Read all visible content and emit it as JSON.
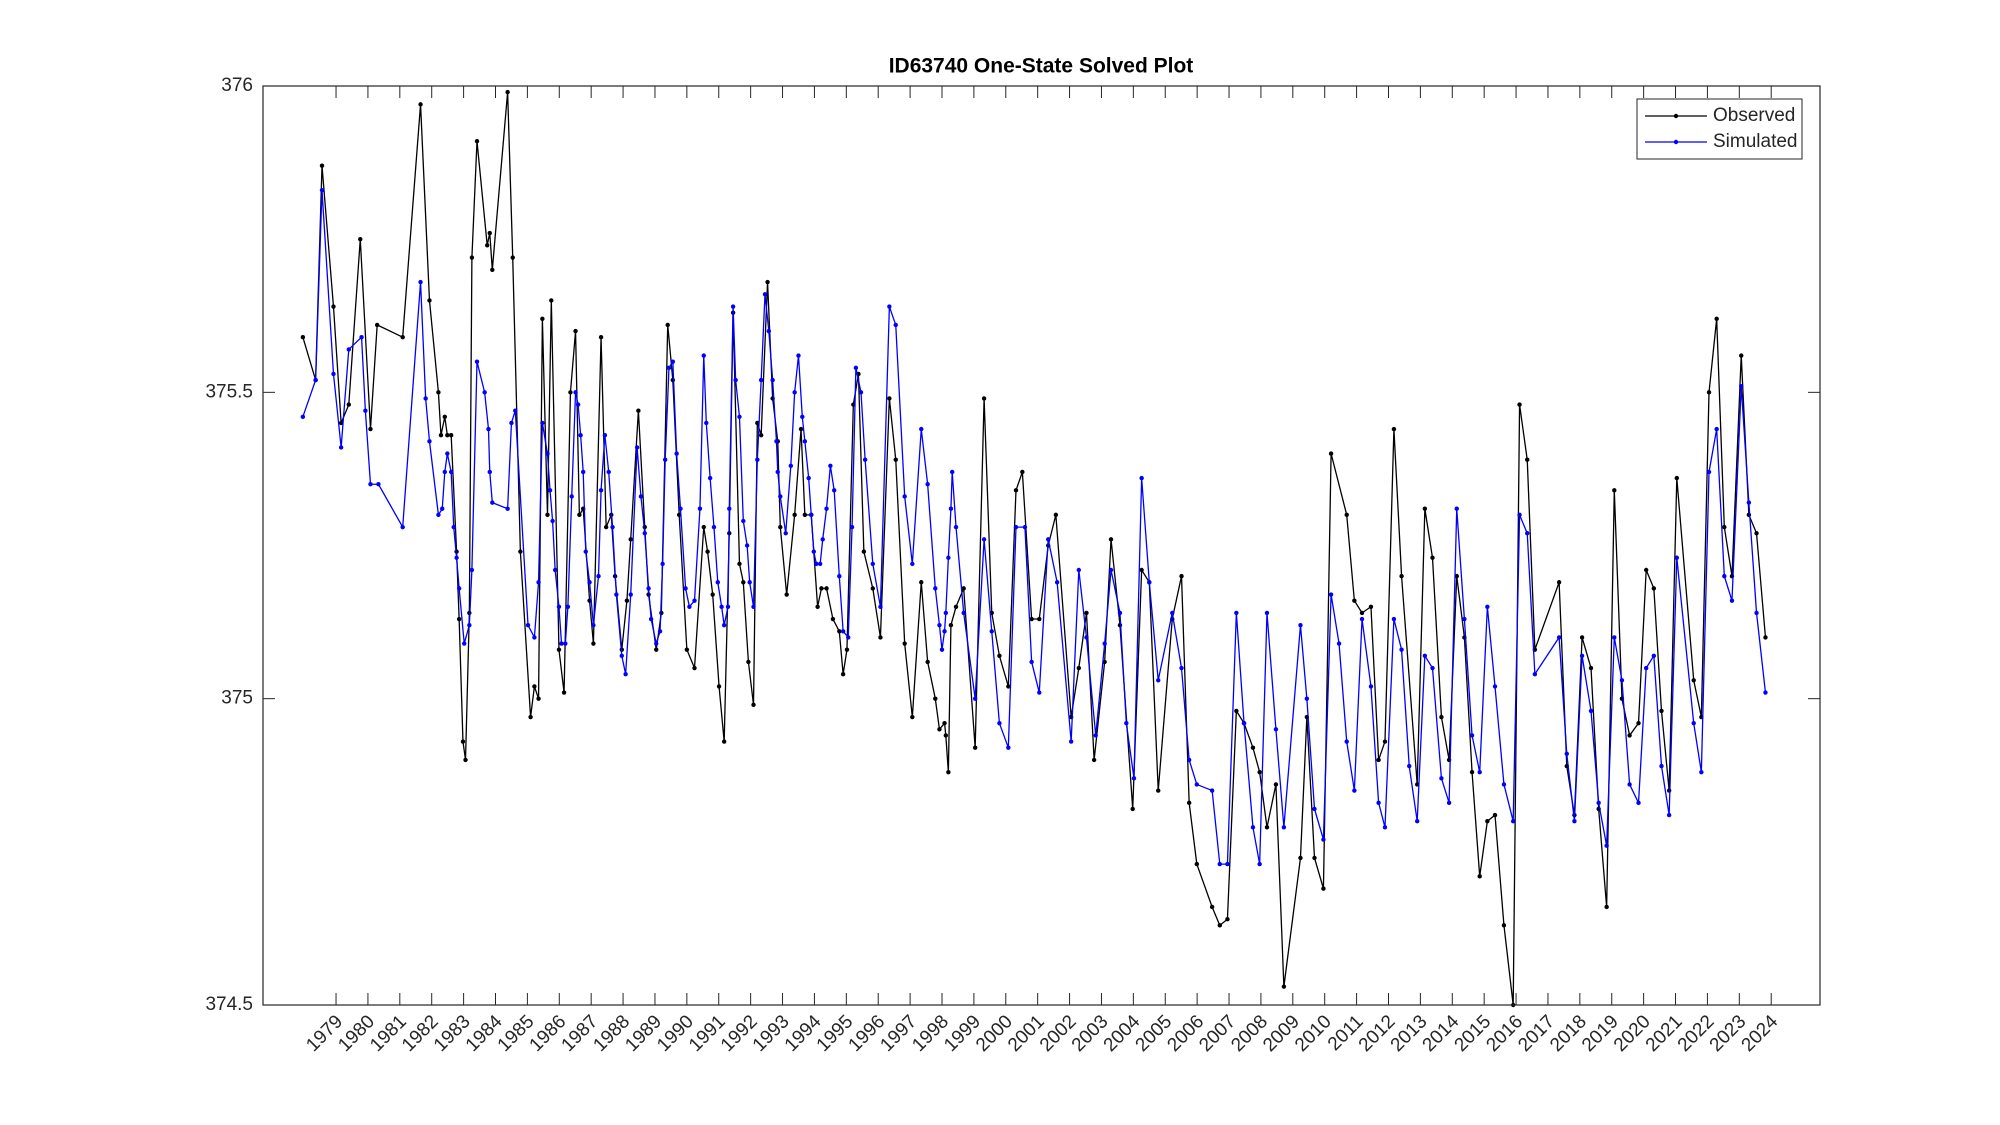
{
  "chart_data": {
    "type": "line",
    "title": "ID63740 One-State Solved Plot",
    "xlim": [
      1976.71,
      2025.53
    ],
    "xticks": [
      1979,
      1980,
      1981,
      1982,
      1983,
      1984,
      1985,
      1986,
      1987,
      1988,
      1989,
      1990,
      1991,
      1992,
      1993,
      1994,
      1995,
      1996,
      1997,
      1998,
      1999,
      2000,
      2001,
      2002,
      2003,
      2004,
      2005,
      2006,
      2007,
      2008,
      2009,
      2010,
      2011,
      2012,
      2013,
      2014,
      2015,
      2016,
      2017,
      2018,
      2019,
      2020,
      2021,
      2022,
      2023,
      2024
    ],
    "ylim": [
      374.5,
      376
    ],
    "yticks": [
      374.5,
      375,
      375.5,
      376
    ],
    "legend": "upper right",
    "grid": false,
    "series": [
      {
        "name": "Observed",
        "color": "#000000",
        "x": [
          1977.96,
          1978.36,
          1978.56,
          1978.92,
          1979.16,
          1979.4,
          1979.76,
          1980.08,
          1980.29,
          1981.09,
          1981.65,
          1981.93,
          1982.21,
          1982.29,
          1982.41,
          1982.49,
          1982.61,
          1982.78,
          1982.86,
          1982.98,
          1983.06,
          1983.18,
          1983.26,
          1983.42,
          1983.74,
          1983.82,
          1983.9,
          1984.38,
          1984.54,
          1984.78,
          1985.1,
          1985.22,
          1985.35,
          1985.47,
          1985.63,
          1985.75,
          1985.99,
          1986.15,
          1986.35,
          1986.51,
          1986.63,
          1986.75,
          1986.95,
          1987.07,
          1987.31,
          1987.47,
          1987.63,
          1987.75,
          1987.96,
          1988.12,
          1988.24,
          1988.48,
          1988.68,
          1988.8,
          1989.04,
          1989.2,
          1989.4,
          1989.56,
          1989.76,
          1990.0,
          1990.24,
          1990.53,
          1990.65,
          1990.81,
          1991.01,
          1991.17,
          1991.33,
          1991.45,
          1991.65,
          1991.77,
          1991.93,
          1992.09,
          1992.21,
          1992.33,
          1992.53,
          1992.69,
          1992.85,
          1992.93,
          1993.13,
          1993.38,
          1993.58,
          1993.7,
          1993.9,
          1994.1,
          1994.22,
          1994.38,
          1994.58,
          1994.78,
          1994.9,
          1995.02,
          1995.22,
          1995.38,
          1995.55,
          1995.83,
          1996.07,
          1996.35,
          1996.55,
          1996.83,
          1997.07,
          1997.35,
          1997.55,
          1997.79,
          1997.92,
          1998.08,
          1998.12,
          1998.2,
          1998.28,
          1998.44,
          1998.68,
          1999.04,
          1999.32,
          1999.56,
          1999.8,
          2000.08,
          2000.32,
          2000.52,
          2000.81,
          2001.05,
          2001.33,
          2001.57,
          2002.05,
          2002.29,
          2002.53,
          2002.77,
          2003.1,
          2003.3,
          2003.58,
          2003.98,
          2004.26,
          2004.5,
          2004.78,
          2005.22,
          2005.51,
          2005.75,
          2005.99,
          2006.47,
          2006.71,
          2006.95,
          2007.23,
          2007.47,
          2007.75,
          2007.96,
          2008.19,
          2008.47,
          2008.72,
          2009.24,
          2009.44,
          2009.68,
          2009.96,
          2010.2,
          2010.69,
          2010.93,
          2011.17,
          2011.45,
          2011.69,
          2011.89,
          2012.17,
          2012.41,
          2012.9,
          2013.14,
          2013.38,
          2013.66,
          2013.9,
          2014.14,
          2014.38,
          2014.62,
          2014.86,
          2015.1,
          2015.34,
          2015.62,
          2015.91,
          2016.11,
          2016.35,
          2016.59,
          2017.35,
          2017.59,
          2017.83,
          2018.07,
          2018.35,
          2018.59,
          2018.84,
          2019.08,
          2019.32,
          2019.56,
          2019.84,
          2020.08,
          2020.32,
          2020.56,
          2020.8,
          2021.04,
          2021.57,
          2021.81,
          2022.05,
          2022.29,
          2022.53,
          2022.77,
          2023.06,
          2023.3,
          2023.54,
          2023.82
        ],
        "values": [
          375.59,
          375.52,
          375.87,
          375.64,
          375.45,
          375.48,
          375.75,
          375.44,
          375.61,
          375.59,
          375.97,
          375.65,
          375.5,
          375.43,
          375.46,
          375.43,
          375.43,
          375.24,
          375.13,
          374.93,
          374.9,
          375.14,
          375.72,
          375.91,
          375.74,
          375.76,
          375.7,
          375.99,
          375.72,
          375.24,
          374.97,
          375.02,
          375.0,
          375.62,
          375.3,
          375.65,
          375.08,
          375.01,
          375.5,
          375.6,
          375.3,
          375.31,
          375.16,
          375.09,
          375.59,
          375.28,
          375.3,
          375.2,
          375.08,
          375.16,
          375.26,
          375.47,
          375.28,
          375.17,
          375.08,
          375.14,
          375.61,
          375.52,
          375.3,
          375.08,
          375.05,
          375.28,
          375.24,
          375.17,
          375.02,
          374.93,
          375.27,
          375.63,
          375.22,
          375.19,
          375.06,
          374.99,
          375.45,
          375.43,
          375.68,
          375.49,
          375.42,
          375.28,
          375.17,
          375.3,
          375.44,
          375.3,
          375.3,
          375.15,
          375.18,
          375.18,
          375.13,
          375.11,
          375.04,
          375.08,
          375.48,
          375.53,
          375.24,
          375.18,
          375.1,
          375.49,
          375.39,
          375.09,
          374.97,
          375.19,
          375.06,
          375.0,
          374.95,
          374.96,
          374.94,
          374.88,
          375.12,
          375.15,
          375.18,
          374.92,
          375.49,
          375.14,
          375.07,
          375.02,
          375.34,
          375.37,
          375.13,
          375.13,
          375.25,
          375.3,
          374.97,
          375.05,
          375.14,
          374.9,
          375.06,
          375.26,
          375.12,
          374.82,
          375.21,
          375.19,
          374.85,
          375.13,
          375.2,
          374.83,
          374.73,
          374.66,
          374.63,
          374.64,
          374.98,
          374.96,
          374.92,
          374.88,
          374.79,
          374.86,
          374.53,
          374.74,
          374.97,
          374.74,
          374.69,
          375.4,
          375.3,
          375.16,
          375.14,
          375.15,
          374.9,
          374.93,
          375.44,
          375.2,
          374.86,
          375.31,
          375.23,
          374.97,
          374.9,
          375.2,
          375.1,
          374.88,
          374.71,
          374.8,
          374.81,
          374.63,
          374.5,
          375.48,
          375.39,
          375.08,
          375.19,
          374.89,
          374.81,
          375.1,
          375.05,
          374.82,
          374.66,
          375.34,
          375.0,
          374.94,
          374.96,
          375.21,
          375.18,
          374.98,
          374.85,
          375.36,
          375.03,
          374.97,
          375.5,
          375.62,
          375.28,
          375.2,
          375.56,
          375.3,
          375.27,
          375.1
        ]
      },
      {
        "name": "Simulated",
        "color": "#0000ff",
        "x": [
          1977.96,
          1978.36,
          1978.56,
          1978.92,
          1979.16,
          1979.4,
          1979.8,
          1979.92,
          1980.08,
          1980.33,
          1981.09,
          1981.65,
          1981.81,
          1981.93,
          1982.21,
          1982.33,
          1982.41,
          1982.49,
          1982.61,
          1982.69,
          1982.78,
          1982.86,
          1983.02,
          1983.18,
          1983.26,
          1983.42,
          1983.66,
          1983.78,
          1983.82,
          1983.9,
          1984.38,
          1984.5,
          1984.62,
          1985.02,
          1985.22,
          1985.35,
          1985.47,
          1985.63,
          1985.71,
          1985.79,
          1985.87,
          1985.99,
          1986.07,
          1986.19,
          1986.27,
          1986.39,
          1986.51,
          1986.59,
          1986.67,
          1986.75,
          1986.83,
          1986.95,
          1987.07,
          1987.23,
          1987.31,
          1987.43,
          1987.55,
          1987.67,
          1987.79,
          1987.96,
          1988.08,
          1988.24,
          1988.44,
          1988.56,
          1988.68,
          1988.8,
          1988.88,
          1989.04,
          1989.16,
          1989.24,
          1989.32,
          1989.44,
          1989.56,
          1989.68,
          1989.8,
          1989.96,
          1990.08,
          1990.24,
          1990.41,
          1990.53,
          1990.61,
          1990.73,
          1990.85,
          1990.97,
          1991.09,
          1991.17,
          1991.29,
          1991.33,
          1991.45,
          1991.53,
          1991.65,
          1991.77,
          1991.89,
          1991.97,
          1992.09,
          1992.21,
          1992.33,
          1992.45,
          1992.57,
          1992.69,
          1992.81,
          1992.85,
          1992.93,
          1993.1,
          1993.26,
          1993.38,
          1993.5,
          1993.62,
          1993.7,
          1993.82,
          1993.9,
          1993.98,
          1994.06,
          1994.18,
          1994.26,
          1994.38,
          1994.5,
          1994.62,
          1994.78,
          1994.9,
          1995.06,
          1995.18,
          1995.3,
          1995.46,
          1995.59,
          1995.83,
          1996.07,
          1996.35,
          1996.55,
          1996.83,
          1997.07,
          1997.35,
          1997.55,
          1997.79,
          1997.92,
          1998.0,
          1998.08,
          1998.12,
          1998.2,
          1998.28,
          1998.32,
          1998.44,
          1998.68,
          1999.04,
          1999.32,
          1999.56,
          1999.8,
          2000.08,
          2000.32,
          2000.6,
          2000.81,
          2001.05,
          2001.33,
          2001.61,
          2002.05,
          2002.29,
          2002.53,
          2002.82,
          2003.1,
          2003.3,
          2003.58,
          2003.78,
          2004.02,
          2004.26,
          2004.5,
          2004.78,
          2005.22,
          2005.51,
          2005.75,
          2005.99,
          2006.47,
          2006.71,
          2006.95,
          2007.23,
          2007.47,
          2007.75,
          2007.96,
          2008.19,
          2008.47,
          2008.72,
          2009.24,
          2009.44,
          2009.68,
          2009.96,
          2010.2,
          2010.45,
          2010.69,
          2010.93,
          2011.17,
          2011.45,
          2011.69,
          2011.89,
          2012.17,
          2012.41,
          2012.65,
          2012.9,
          2013.14,
          2013.38,
          2013.66,
          2013.9,
          2014.14,
          2014.38,
          2014.62,
          2014.86,
          2015.1,
          2015.34,
          2015.62,
          2015.91,
          2016.11,
          2016.35,
          2016.59,
          2017.35,
          2017.59,
          2017.83,
          2018.07,
          2018.35,
          2018.59,
          2018.84,
          2019.08,
          2019.32,
          2019.56,
          2019.84,
          2020.08,
          2020.32,
          2020.56,
          2020.8,
          2021.04,
          2021.57,
          2021.81,
          2022.05,
          2022.29,
          2022.53,
          2022.77,
          2023.06,
          2023.3,
          2023.54,
          2023.82
        ],
        "values": [
          375.46,
          375.52,
          375.83,
          375.53,
          375.41,
          375.57,
          375.59,
          375.47,
          375.35,
          375.35,
          375.28,
          375.68,
          375.49,
          375.42,
          375.3,
          375.31,
          375.37,
          375.4,
          375.37,
          375.28,
          375.23,
          375.18,
          375.09,
          375.12,
          375.21,
          375.55,
          375.5,
          375.44,
          375.37,
          375.32,
          375.31,
          375.45,
          375.47,
          375.12,
          375.1,
          375.19,
          375.45,
          375.4,
          375.34,
          375.29,
          375.21,
          375.15,
          375.09,
          375.09,
          375.15,
          375.33,
          375.5,
          375.48,
          375.43,
          375.37,
          375.24,
          375.19,
          375.12,
          375.2,
          375.34,
          375.43,
          375.37,
          375.28,
          375.17,
          375.07,
          375.04,
          375.17,
          375.41,
          375.33,
          375.27,
          375.18,
          375.13,
          375.09,
          375.11,
          375.22,
          375.39,
          375.54,
          375.55,
          375.4,
          375.31,
          375.18,
          375.15,
          375.16,
          375.31,
          375.56,
          375.45,
          375.36,
          375.28,
          375.19,
          375.15,
          375.12,
          375.15,
          375.31,
          375.64,
          375.52,
          375.46,
          375.29,
          375.25,
          375.19,
          375.15,
          375.39,
          375.52,
          375.66,
          375.6,
          375.52,
          375.42,
          375.37,
          375.33,
          375.27,
          375.38,
          375.5,
          375.56,
          375.46,
          375.42,
          375.36,
          375.3,
          375.24,
          375.22,
          375.22,
          375.26,
          375.31,
          375.38,
          375.34,
          375.2,
          375.11,
          375.1,
          375.28,
          375.54,
          375.5,
          375.39,
          375.22,
          375.15,
          375.64,
          375.61,
          375.33,
          375.22,
          375.44,
          375.35,
          375.18,
          375.12,
          375.08,
          375.11,
          375.14,
          375.23,
          375.31,
          375.37,
          375.28,
          375.14,
          375.0,
          375.26,
          375.11,
          374.96,
          374.92,
          375.28,
          375.28,
          375.06,
          375.01,
          375.26,
          375.19,
          374.93,
          375.21,
          375.1,
          374.94,
          375.09,
          375.21,
          375.14,
          374.96,
          374.87,
          375.36,
          375.19,
          375.03,
          375.14,
          375.05,
          374.9,
          374.86,
          374.85,
          374.73,
          374.73,
          375.14,
          374.96,
          374.79,
          374.73,
          375.14,
          374.95,
          374.79,
          375.12,
          375.0,
          374.82,
          374.77,
          375.17,
          375.09,
          374.93,
          374.85,
          375.13,
          375.02,
          374.83,
          374.79,
          375.13,
          375.08,
          374.89,
          374.8,
          375.07,
          375.05,
          374.87,
          374.83,
          375.31,
          375.13,
          374.94,
          374.88,
          375.15,
          375.02,
          374.86,
          374.8,
          375.3,
          375.27,
          375.04,
          375.1,
          374.91,
          374.8,
          375.07,
          374.98,
          374.83,
          374.76,
          375.1,
          375.03,
          374.86,
          374.83,
          375.05,
          375.07,
          374.89,
          374.81,
          375.23,
          374.96,
          374.88,
          375.37,
          375.44,
          375.2,
          375.16,
          375.51,
          375.32,
          375.14,
          375.01
        ]
      }
    ]
  }
}
